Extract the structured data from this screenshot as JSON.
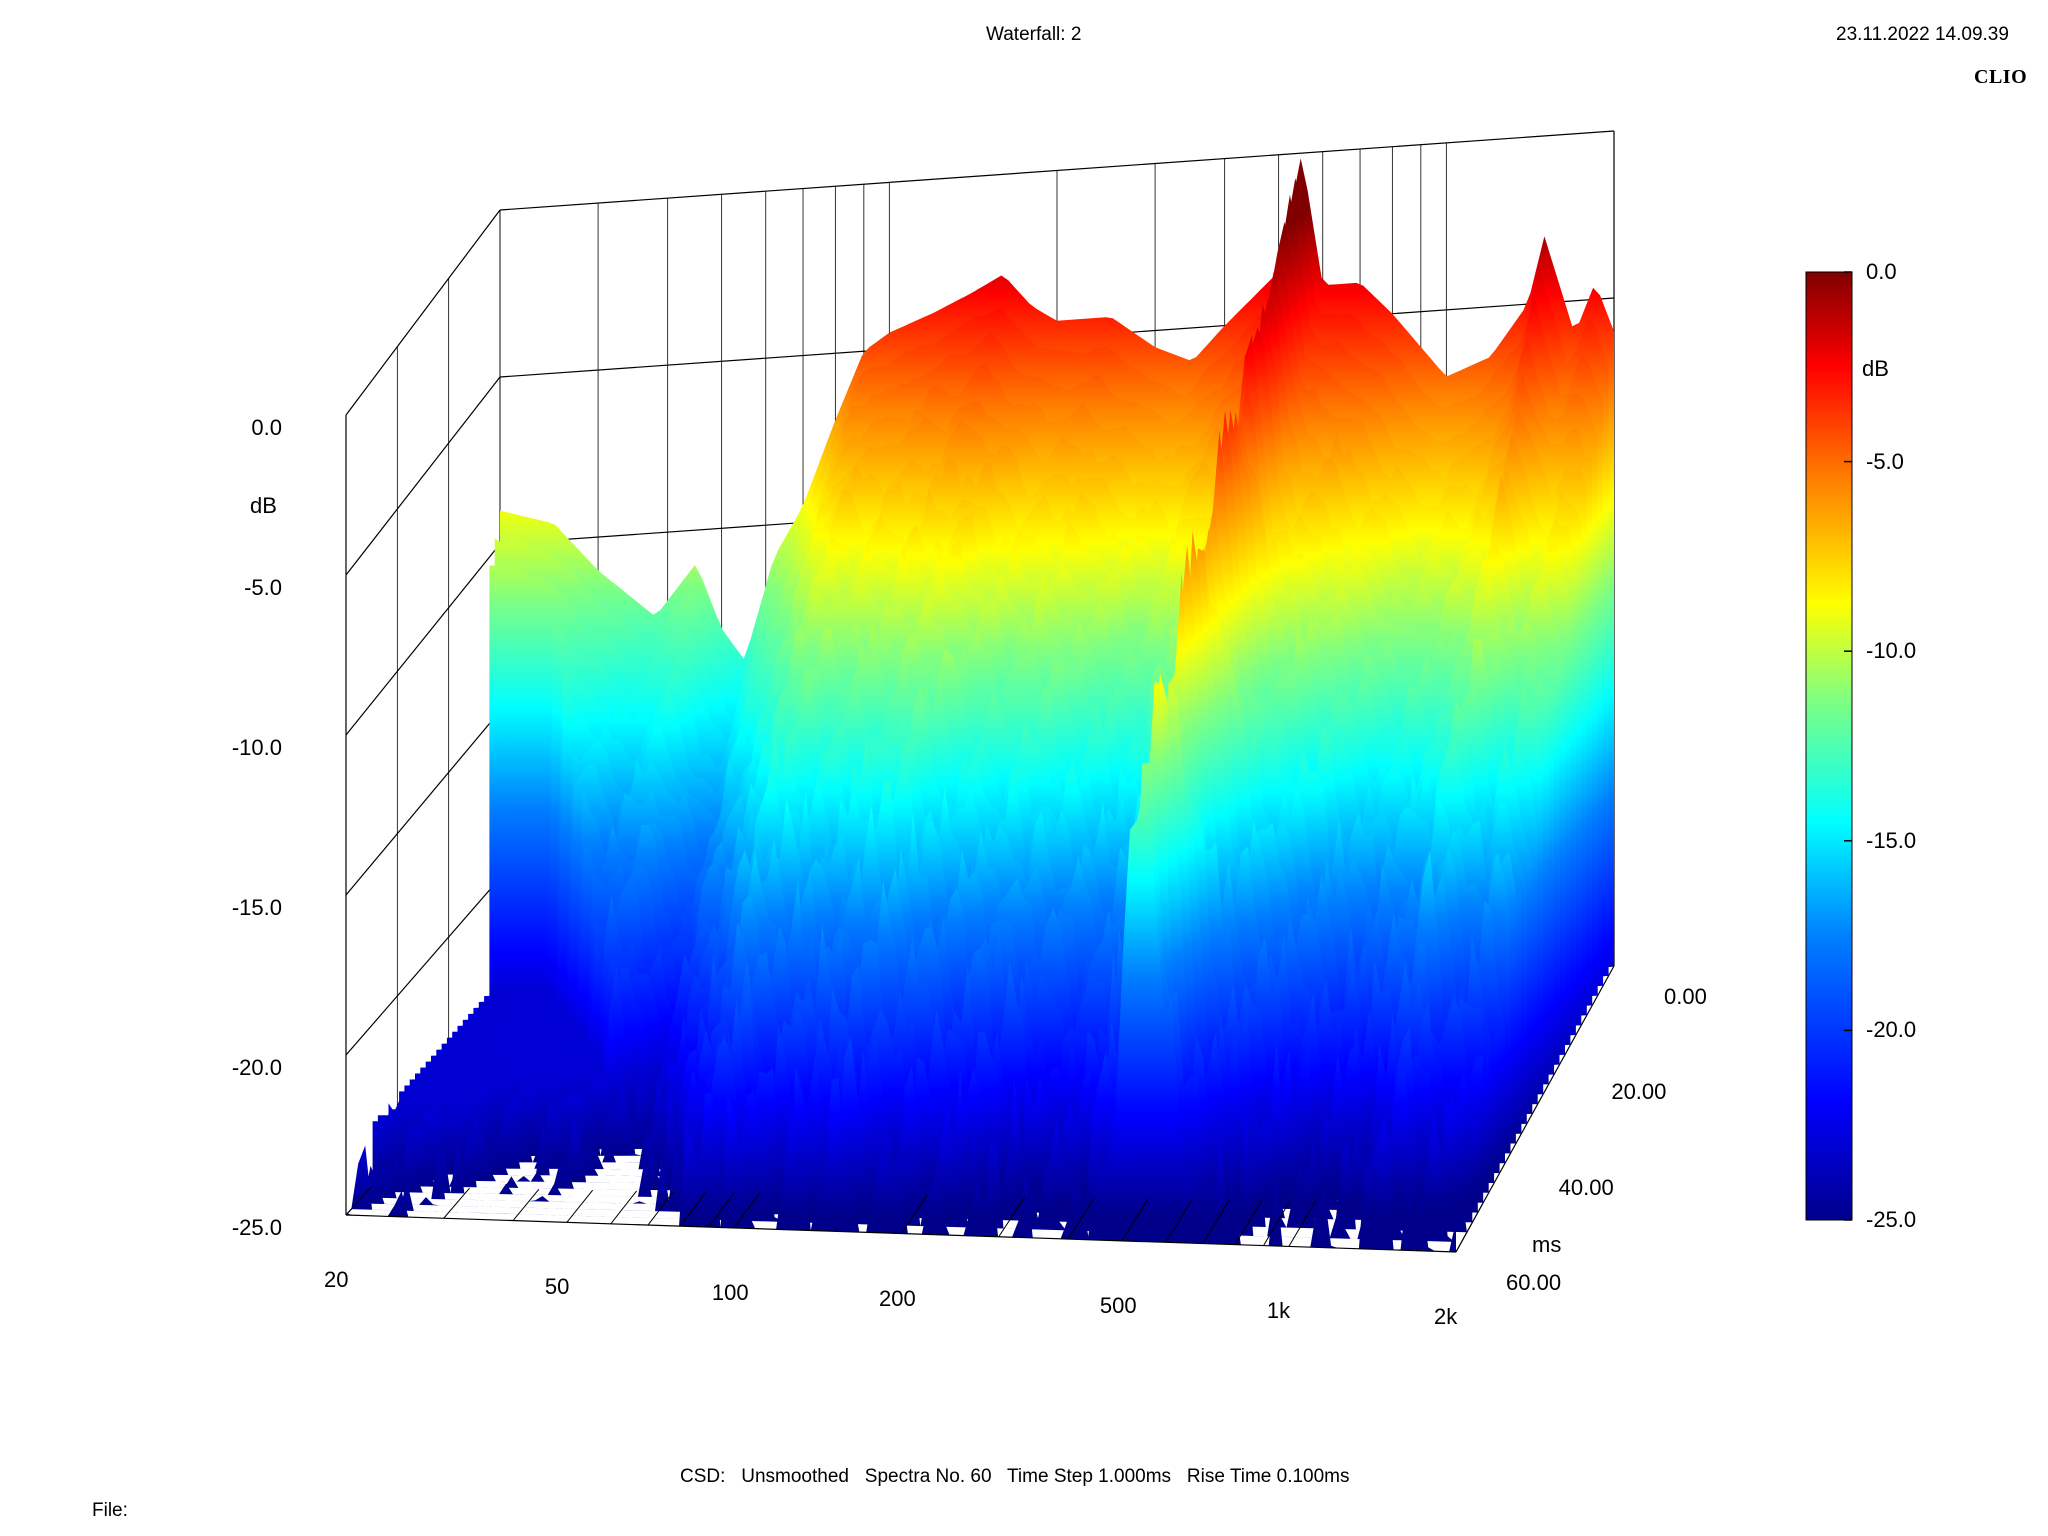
{
  "header": {
    "title": "Waterfall: 2",
    "timestamp": "23.11.2022 14.09.39",
    "brand": "CLIO"
  },
  "footer": {
    "csd_info": "CSD:   Unsmoothed   Spectra No. 60   Time Step 1.000ms   Rise Time 0.100ms",
    "file_label": "File:"
  },
  "chart_data": {
    "type": "waterfall",
    "title": "Waterfall: 2",
    "x_axis": {
      "label": "",
      "scale": "log",
      "range": [
        20,
        2000
      ],
      "ticks": [
        20,
        50,
        100,
        200,
        500,
        1000,
        2000
      ],
      "tick_labels": [
        "20",
        "50",
        "100",
        "200",
        "500",
        "1k",
        "2k"
      ]
    },
    "y_axis": {
      "label": "dB",
      "range": [
        -25.0,
        0.0
      ],
      "ticks": [
        0.0,
        -5.0,
        -10.0,
        -15.0,
        -20.0,
        -25.0
      ],
      "tick_labels": [
        "0.0",
        "-5.0",
        "-10.0",
        "-15.0",
        "-20.0",
        "-25.0"
      ]
    },
    "z_axis": {
      "label": "ms",
      "range": [
        0.0,
        60.0
      ],
      "ticks": [
        0.0,
        20.0,
        40.0,
        60.0
      ],
      "tick_labels": [
        "0.00",
        "20.00",
        "40.00",
        "60.00"
      ]
    },
    "colorbar": {
      "label": "dB",
      "range": [
        -25.0,
        0.0
      ],
      "tick_labels": [
        "0.0",
        "-5.0",
        "-10.0",
        "-15.0",
        "-20.0",
        "-25.0"
      ],
      "colors": [
        "#00008b",
        "#0000ff",
        "#0080ff",
        "#00ffff",
        "#80ff80",
        "#ffff00",
        "#ff8000",
        "#ff0000",
        "#800000"
      ]
    },
    "grid": true,
    "legend": "right",
    "spectra_count": 60,
    "time_step_ms": 1.0,
    "rise_time_ms": 0.1,
    "front_spectrum_db": [
      {
        "freq": 20,
        "db": -9.0
      },
      {
        "freq": 25,
        "db": -9.5
      },
      {
        "freq": 30,
        "db": -11.0
      },
      {
        "freq": 38,
        "db": -12.5
      },
      {
        "freq": 45,
        "db": -11.0
      },
      {
        "freq": 50,
        "db": -13.0
      },
      {
        "freq": 55,
        "db": -14.0
      },
      {
        "freq": 62,
        "db": -11.0
      },
      {
        "freq": 70,
        "db": -9.5
      },
      {
        "freq": 80,
        "db": -7.0
      },
      {
        "freq": 90,
        "db": -5.0
      },
      {
        "freq": 100,
        "db": -4.5
      },
      {
        "freq": 120,
        "db": -4.0
      },
      {
        "freq": 140,
        "db": -3.5
      },
      {
        "freq": 160,
        "db": -3.0
      },
      {
        "freq": 180,
        "db": -4.0
      },
      {
        "freq": 200,
        "db": -4.5
      },
      {
        "freq": 250,
        "db": -4.5
      },
      {
        "freq": 300,
        "db": -5.5
      },
      {
        "freq": 350,
        "db": -6.0
      },
      {
        "freq": 400,
        "db": -5.0
      },
      {
        "freq": 500,
        "db": -3.5
      },
      {
        "freq": 550,
        "db": 0.0
      },
      {
        "freq": 600,
        "db": -4.0
      },
      {
        "freq": 700,
        "db": -4.0
      },
      {
        "freq": 800,
        "db": -5.0
      },
      {
        "freq": 1000,
        "db": -7.0
      },
      {
        "freq": 1200,
        "db": -6.5
      },
      {
        "freq": 1400,
        "db": -5.0
      },
      {
        "freq": 1500,
        "db": -3.0
      },
      {
        "freq": 1700,
        "db": -6.0
      },
      {
        "freq": 1850,
        "db": -4.5
      },
      {
        "freq": 2000,
        "db": -6.0
      }
    ],
    "decay_ridge": {
      "freq": 550,
      "peak_db": 0.0
    }
  }
}
